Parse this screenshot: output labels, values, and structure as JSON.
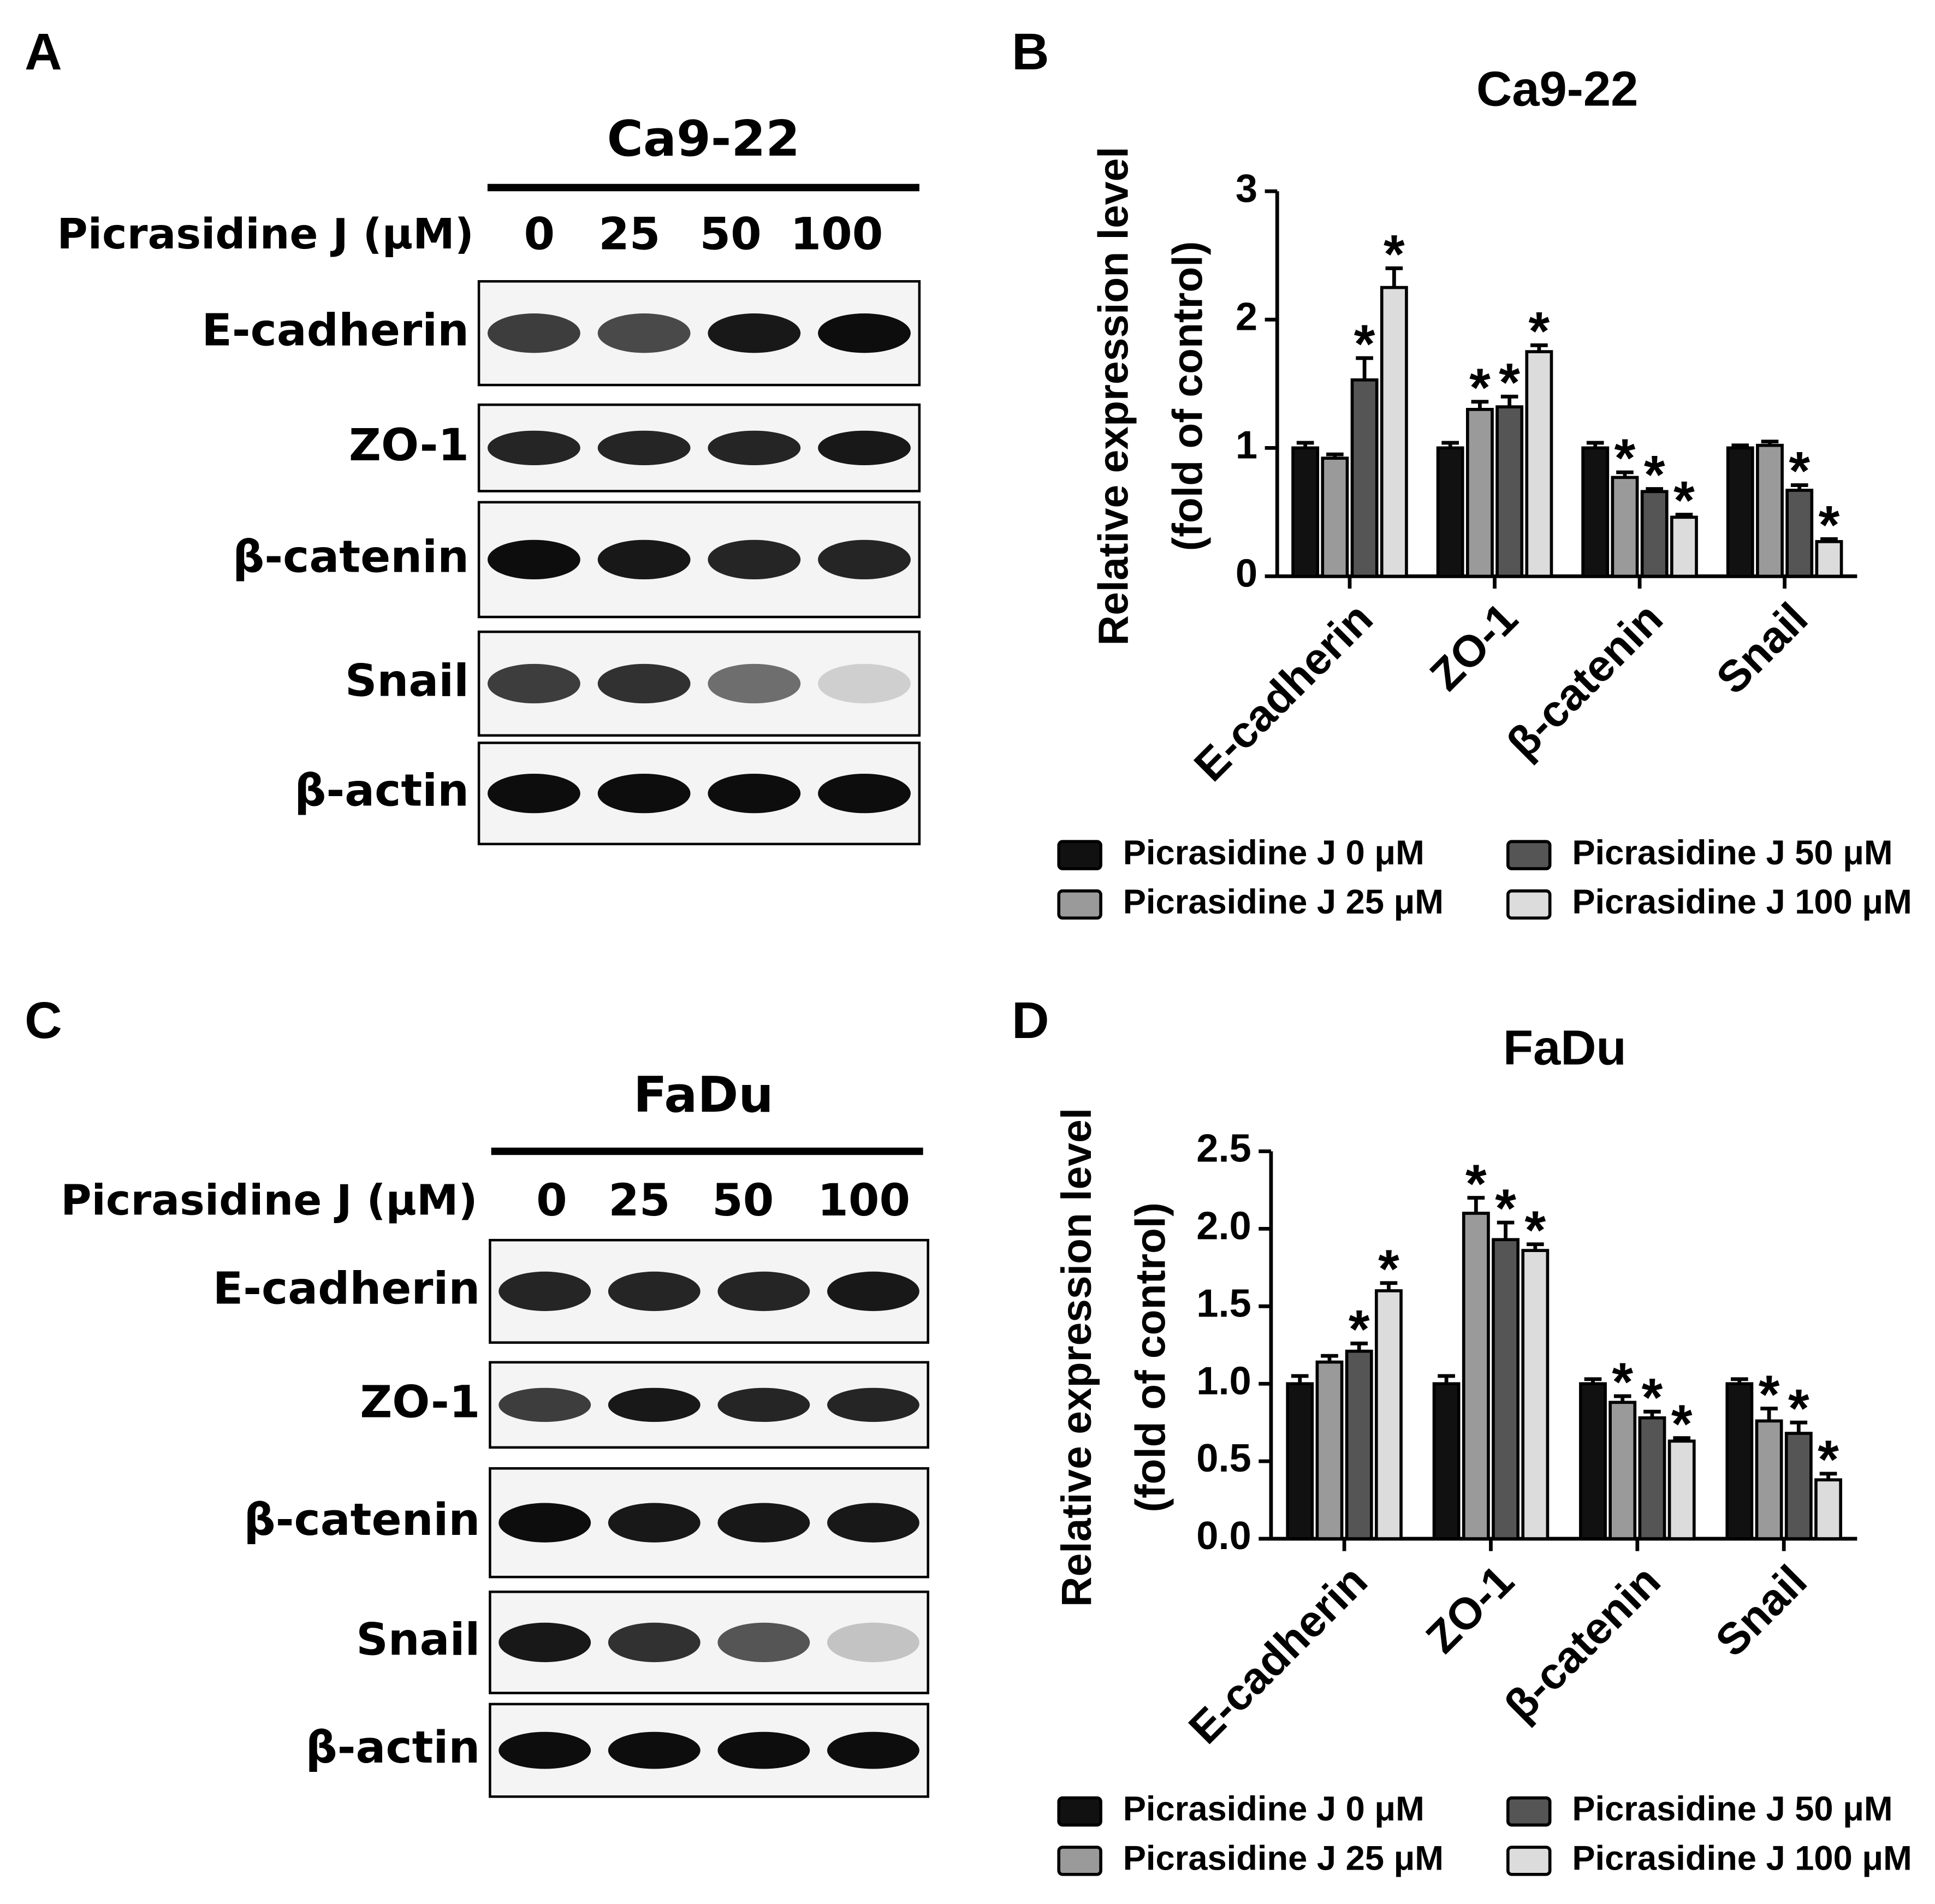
{
  "panels": [
    "A",
    "B",
    "C",
    "D"
  ],
  "blots": [
    {
      "cell": "Ca9-22",
      "treatment": "Picrasidine J (μM)",
      "doses": [
        "0",
        "25",
        "50",
        "100"
      ],
      "proteins": [
        "E-cadherin",
        "ZO-1",
        "β-catenin",
        "Snail",
        "β-actin"
      ]
    },
    {
      "cell": "FaDu",
      "treatment": "Picrasidine J (μM)",
      "doses": [
        "0",
        "25",
        "50",
        "100"
      ],
      "proteins": [
        "E-cadherin",
        "ZO-1",
        "β-catenin",
        "Snail",
        "β-actin"
      ]
    }
  ],
  "chart_data": [
    {
      "type": "bar",
      "title": "Ca9-22",
      "y_label": [
        "Relative expression level",
        "(fold of control)"
      ],
      "categories": [
        "E-cadherin",
        "ZO-1",
        "β-catenin",
        "Snail"
      ],
      "ylim": [
        0,
        3
      ],
      "yticks": [
        0,
        1,
        2,
        3
      ],
      "series": [
        {
          "name": "Picrasidine J 0 μM",
          "color": "#111111",
          "values": [
            1.0,
            1.0,
            1.0,
            1.0
          ],
          "errors": [
            0.04,
            0.04,
            0.04,
            0.02
          ],
          "signif": [
            null,
            null,
            null,
            null
          ]
        },
        {
          "name": "Picrasidine J 25 μM",
          "color": "#9a9a9a",
          "values": [
            0.92,
            1.3,
            0.77,
            1.02
          ],
          "errors": [
            0.03,
            0.06,
            0.04,
            0.03
          ],
          "signif": [
            null,
            "*",
            "*",
            null
          ]
        },
        {
          "name": "Picrasidine J 50 μM",
          "color": "#555555",
          "values": [
            1.53,
            1.32,
            0.66,
            0.67
          ],
          "errors": [
            0.17,
            0.08,
            0.02,
            0.04
          ],
          "signif": [
            "*",
            "*",
            "*",
            "*"
          ]
        },
        {
          "name": "Picrasidine J 100 μM",
          "color": "#dcdcdc",
          "values": [
            2.25,
            1.75,
            0.46,
            0.27
          ],
          "errors": [
            0.15,
            0.05,
            0.02,
            0.02
          ],
          "signif": [
            "*",
            "*",
            "*",
            "*"
          ]
        }
      ]
    },
    {
      "type": "bar",
      "title": "FaDu",
      "y_label": [
        "Relative expression level",
        "(fold of control)"
      ],
      "categories": [
        "E-cadherin",
        "ZO-1",
        "β-catenin",
        "Snail"
      ],
      "ylim": [
        0,
        2.5
      ],
      "yticks": [
        {
          "value": 0,
          "label": "0.0"
        },
        {
          "value": 0.5,
          "label": "0.5"
        },
        {
          "value": 1,
          "label": "1.0"
        },
        {
          "value": 1.5,
          "label": "1.5"
        },
        {
          "value": 2,
          "label": "2.0"
        },
        {
          "value": 2.5,
          "label": "2.5"
        }
      ],
      "series": [
        {
          "name": "Picrasidine J 0 μM",
          "color": "#111111",
          "values": [
            1.0,
            1.0,
            1.0,
            1.0
          ],
          "errors": [
            0.05,
            0.05,
            0.03,
            0.03
          ],
          "signif": [
            null,
            null,
            null,
            null
          ]
        },
        {
          "name": "Picrasidine J 25 μM",
          "color": "#9a9a9a",
          "values": [
            1.14,
            2.1,
            0.88,
            0.76
          ],
          "errors": [
            0.04,
            0.1,
            0.04,
            0.08
          ],
          "signif": [
            null,
            "*",
            "*",
            "*"
          ]
        },
        {
          "name": "Picrasidine J 50 μM",
          "color": "#555555",
          "values": [
            1.21,
            1.93,
            0.78,
            0.68
          ],
          "errors": [
            0.05,
            0.11,
            0.04,
            0.07
          ],
          "signif": [
            "*",
            "*",
            "*",
            "*"
          ]
        },
        {
          "name": "Picrasidine J 100 μM",
          "color": "#dcdcdc",
          "values": [
            1.6,
            1.86,
            0.63,
            0.38
          ],
          "errors": [
            0.05,
            0.04,
            0.02,
            0.04
          ],
          "signif": [
            "*",
            "*",
            "*",
            "*"
          ]
        }
      ]
    }
  ]
}
